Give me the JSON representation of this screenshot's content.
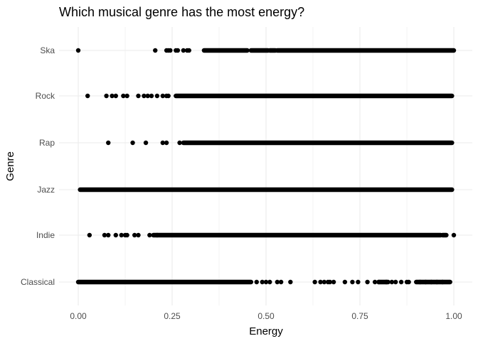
{
  "chart_data": {
    "type": "scatter",
    "title": "Which musical genre has the most energy?",
    "xlabel": "Energy",
    "ylabel": "Genre",
    "xlim": [
      -0.04,
      1.04
    ],
    "x_ticks": [
      {
        "value": 0.0,
        "label": "0.00"
      },
      {
        "value": 0.25,
        "label": "0.25"
      },
      {
        "value": 0.5,
        "label": "0.50"
      },
      {
        "value": 0.75,
        "label": "0.75"
      },
      {
        "value": 1.0,
        "label": "1.00"
      }
    ],
    "x_minor_ticks": [
      0.125,
      0.375,
      0.625,
      0.875
    ],
    "categories": [
      "Classical",
      "Indie",
      "Jazz",
      "Rap",
      "Rock",
      "Ska"
    ],
    "grid": true,
    "marker_color": "#000000",
    "series": [
      {
        "category": "Ska",
        "points": [
          0.0,
          0.205,
          0.235,
          0.24,
          0.245,
          0.26,
          0.265,
          0.28,
          0.29,
          0.295
        ],
        "dense_ranges": [
          [
            0.335,
            0.45
          ],
          [
            0.46,
            0.505
          ],
          [
            0.51,
            0.525
          ],
          [
            0.53,
            1.0
          ]
        ]
      },
      {
        "category": "Rock",
        "points": [
          0.025,
          0.075,
          0.09,
          0.1,
          0.12,
          0.13,
          0.16,
          0.175,
          0.185,
          0.195,
          0.21,
          0.225,
          0.235,
          0.24
        ],
        "dense_ranges": [
          [
            0.26,
            0.995
          ]
        ]
      },
      {
        "category": "Rap",
        "points": [
          0.08,
          0.145,
          0.18,
          0.225,
          0.235,
          0.27
        ],
        "dense_ranges": [
          [
            0.28,
            0.995
          ]
        ]
      },
      {
        "category": "Jazz",
        "points": [],
        "dense_ranges": [
          [
            0.005,
            0.995
          ]
        ]
      },
      {
        "category": "Indie",
        "points": [
          0.03,
          0.07,
          0.08,
          0.1,
          0.115,
          0.125,
          0.13,
          0.15,
          0.16,
          0.19,
          0.21,
          1.0
        ],
        "dense_ranges": [
          [
            0.2,
            0.965
          ],
          [
            0.97,
            0.98
          ]
        ]
      },
      {
        "category": "Classical",
        "points": [
          0.475,
          0.49,
          0.5,
          0.51,
          0.53,
          0.54,
          0.565,
          0.63,
          0.645,
          0.655,
          0.665,
          0.67,
          0.68,
          0.71,
          0.73,
          0.745,
          0.77,
          0.79,
          0.8,
          0.82,
          0.835,
          0.845,
          0.86,
          0.875,
          0.88,
          0.91,
          0.925,
          0.94,
          0.955,
          0.97
        ],
        "dense_ranges": [
          [
            0.0,
            0.46
          ],
          [
            0.8,
            0.825
          ],
          [
            0.9,
            0.99
          ]
        ]
      }
    ]
  }
}
